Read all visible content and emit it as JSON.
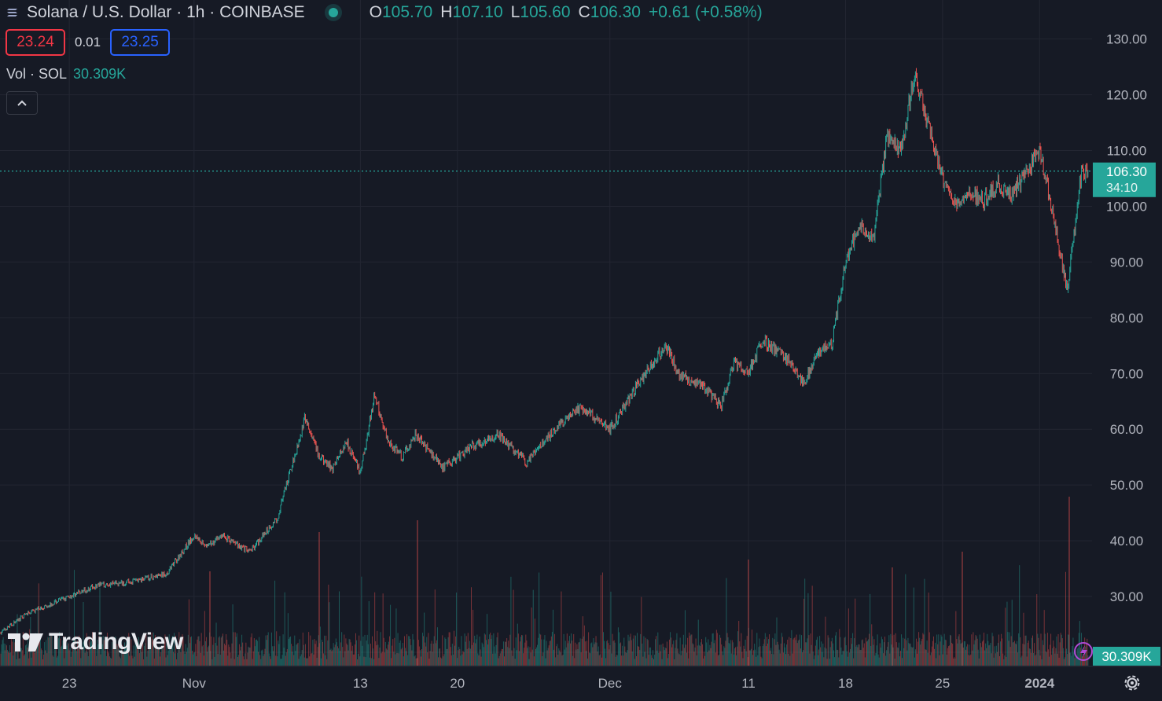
{
  "header": {
    "title": "Solana / U.S. Dollar · 1h · COINBASE",
    "open_label": "O",
    "open": "105.70",
    "high_label": "H",
    "high": "107.10",
    "low_label": "L",
    "low": "105.60",
    "close_label": "C",
    "close": "106.30",
    "change": "+0.61 (+0.58%)",
    "symbol_icon": "solana-logo-icon",
    "status_icon": "market-open-dot-icon"
  },
  "quote": {
    "sell": "23.24",
    "spread": "0.01",
    "buy": "23.25"
  },
  "volume": {
    "label": "Vol · SOL",
    "value": "30.309K"
  },
  "logo": {
    "text": "TradingView",
    "icon": "tradingview-logo-icon"
  },
  "colors": {
    "up": "#26a69a",
    "down": "#ef5350",
    "background": "#161a25",
    "grid": "#232632"
  },
  "chart_data": {
    "type": "line",
    "x_ticks": [
      "23",
      "Nov",
      "13",
      "20",
      "Dec",
      "11",
      "18",
      "25",
      "2024"
    ],
    "y_ticks": [
      "130.00",
      "120.00",
      "110.00",
      "100.00",
      "90.00",
      "80.00",
      "70.00",
      "60.00",
      "50.00",
      "40.00",
      "30.00",
      "20.00"
    ],
    "ylim": [
      17.6,
      137
    ],
    "last_price": "106.30",
    "countdown": "34:10",
    "last_volume": "30.309K",
    "series": [
      {
        "x": [
          "2023-10-18",
          "2023-10-20",
          "2023-10-23",
          "2023-10-25",
          "2023-10-27",
          "2023-10-30",
          "2023-11-01",
          "2023-11-02",
          "2023-11-03",
          "2023-11-05",
          "2023-11-07",
          "2023-11-09",
          "2023-11-10",
          "2023-11-11",
          "2023-11-12",
          "2023-11-13",
          "2023-11-14",
          "2023-11-15",
          "2023-11-16",
          "2023-11-17",
          "2023-11-19",
          "2023-11-21",
          "2023-11-23",
          "2023-11-25",
          "2023-11-27",
          "2023-11-29",
          "2023-12-01",
          "2023-12-03",
          "2023-12-05",
          "2023-12-06",
          "2023-12-08",
          "2023-12-09",
          "2023-12-10",
          "2023-12-11",
          "2023-12-12",
          "2023-12-14",
          "2023-12-15",
          "2023-12-16",
          "2023-12-17",
          "2023-12-18",
          "2023-12-19",
          "2023-12-20",
          "2023-12-21",
          "2023-12-22",
          "2023-12-23",
          "2023-12-24",
          "2023-12-25",
          "2023-12-26",
          "2023-12-27",
          "2023-12-28",
          "2023-12-29",
          "2023-12-30",
          "2024-01-01",
          "2024-01-02",
          "2024-01-03",
          "2024-01-04"
        ],
        "values": [
          23.5,
          27,
          30,
          32,
          32.5,
          34,
          41,
          39,
          41,
          38,
          44,
          62,
          55,
          53,
          58,
          52,
          66,
          58,
          55,
          59,
          53,
          57,
          59,
          54,
          60,
          64,
          60,
          68,
          75,
          70,
          67,
          64,
          72,
          70,
          76,
          72,
          68,
          74,
          75,
          90,
          97,
          94,
          113,
          110,
          124,
          114,
          105,
          100,
          102,
          101,
          104,
          102,
          110,
          98,
          85,
          106.3
        ]
      }
    ]
  }
}
